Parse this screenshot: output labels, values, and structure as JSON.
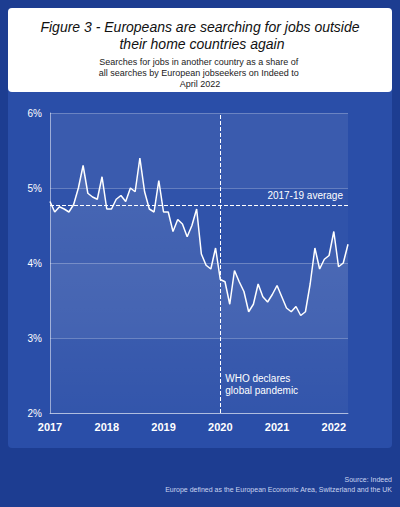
{
  "chart_data": {
    "type": "line",
    "title": "Figure 3 - Europeans are searching for jobs outside their home countries again",
    "subtitle": "Searches for jobs in another country as a share of all searches by European jobseekers on Indeed to April 2022",
    "source": "Source: Indeed",
    "note": "Europe defined as the European Economic Area, Switzerland and the UK",
    "categories": [
      "2017",
      null,
      null,
      null,
      null,
      null,
      null,
      null,
      null,
      null,
      null,
      null,
      "2018",
      null,
      null,
      null,
      null,
      null,
      null,
      null,
      null,
      null,
      null,
      null,
      "2019",
      null,
      null,
      null,
      null,
      null,
      null,
      null,
      null,
      null,
      null,
      null,
      "2020",
      null,
      null,
      null,
      null,
      null,
      null,
      null,
      null,
      null,
      null,
      null,
      "2021",
      null,
      null,
      null,
      null,
      null,
      null,
      null,
      null,
      null,
      null,
      null,
      "2022",
      null,
      null,
      null
    ],
    "values": [
      4.82,
      4.68,
      4.75,
      4.72,
      4.68,
      4.78,
      5.0,
      5.3,
      4.93,
      4.88,
      4.85,
      5.15,
      4.72,
      4.72,
      4.85,
      4.9,
      4.82,
      5.0,
      4.95,
      5.4,
      4.95,
      4.72,
      4.68,
      5.1,
      4.68,
      4.68,
      4.42,
      4.58,
      4.52,
      4.35,
      4.5,
      4.72,
      4.12,
      3.97,
      3.92,
      4.2,
      3.78,
      3.75,
      3.45,
      3.9,
      3.75,
      3.62,
      3.35,
      3.45,
      3.72,
      3.55,
      3.48,
      3.58,
      3.7,
      3.55,
      3.4,
      3.35,
      3.42,
      3.3,
      3.35,
      3.72,
      4.2,
      3.92,
      4.05,
      4.1,
      4.42,
      3.95,
      4.0,
      4.25
    ],
    "color": "#ffffff",
    "ylim": [
      2,
      6
    ],
    "yticks": [
      {
        "value": 2,
        "label": "2%"
      },
      {
        "value": 3,
        "label": "3%"
      },
      {
        "value": 4,
        "label": "4%"
      },
      {
        "value": 5,
        "label": "5%"
      },
      {
        "value": 6,
        "label": "6%"
      }
    ],
    "grid": true,
    "annotations": [
      {
        "text": "2017-19 average",
        "y": 4.77
      },
      {
        "text": "WHO declares\nglobal pandemic",
        "x": "2020"
      }
    ]
  }
}
